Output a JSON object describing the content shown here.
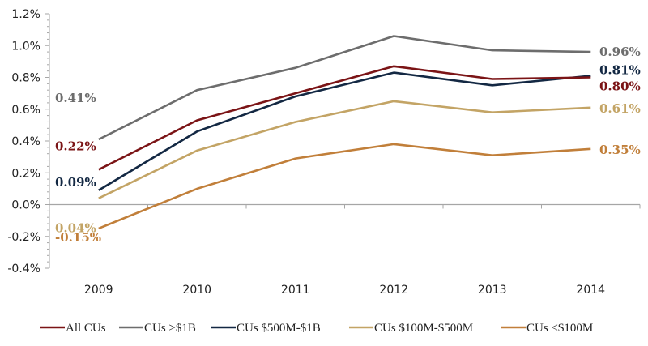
{
  "chart_data": {
    "type": "line",
    "title": "",
    "xlabel": "",
    "ylabel": "",
    "x": [
      "2009",
      "2010",
      "2011",
      "2012",
      "2013",
      "2014"
    ],
    "ylim": [
      -0.4,
      1.2
    ],
    "y_ticks": [
      -0.4,
      -0.2,
      0.0,
      0.2,
      0.4,
      0.6,
      0.8,
      1.0,
      1.2
    ],
    "y_tick_labels": [
      "-0.4%",
      "-0.2%",
      "0.0%",
      "0.2%",
      "0.4%",
      "0.6%",
      "0.8%",
      "1.0%",
      "1.2%"
    ],
    "y_minor_ticks_per_major": 5,
    "grid": false,
    "legend_position": "bottom",
    "series": [
      {
        "name": "All CUs",
        "color": "#7b1416",
        "values": [
          0.22,
          0.53,
          0.7,
          0.87,
          0.79,
          0.8
        ],
        "start_label": "0.22%",
        "end_label": "0.80%"
      },
      {
        "name": "CUs >$1B",
        "color": "#6d6d6d",
        "values": [
          0.41,
          0.72,
          0.86,
          1.06,
          0.97,
          0.96
        ],
        "start_label": "0.41%",
        "end_label": "0.96%"
      },
      {
        "name": "CUs $500M-$1B",
        "color": "#132843",
        "values": [
          0.09,
          0.46,
          0.68,
          0.83,
          0.75,
          0.81
        ],
        "start_label": "0.09%",
        "end_label": "0.81%"
      },
      {
        "name": "CUs $100M-$500M",
        "color": "#c3a465",
        "values": [
          0.04,
          0.34,
          0.52,
          0.65,
          0.58,
          0.61
        ],
        "start_label": "0.04%",
        "end_label": "0.61%"
      },
      {
        "name": "CUs <$100M",
        "color": "#c17f3a",
        "values": [
          -0.15,
          0.1,
          0.29,
          0.38,
          0.31,
          0.35
        ],
        "start_label": "-0.15%",
        "end_label": "0.35%"
      }
    ]
  }
}
